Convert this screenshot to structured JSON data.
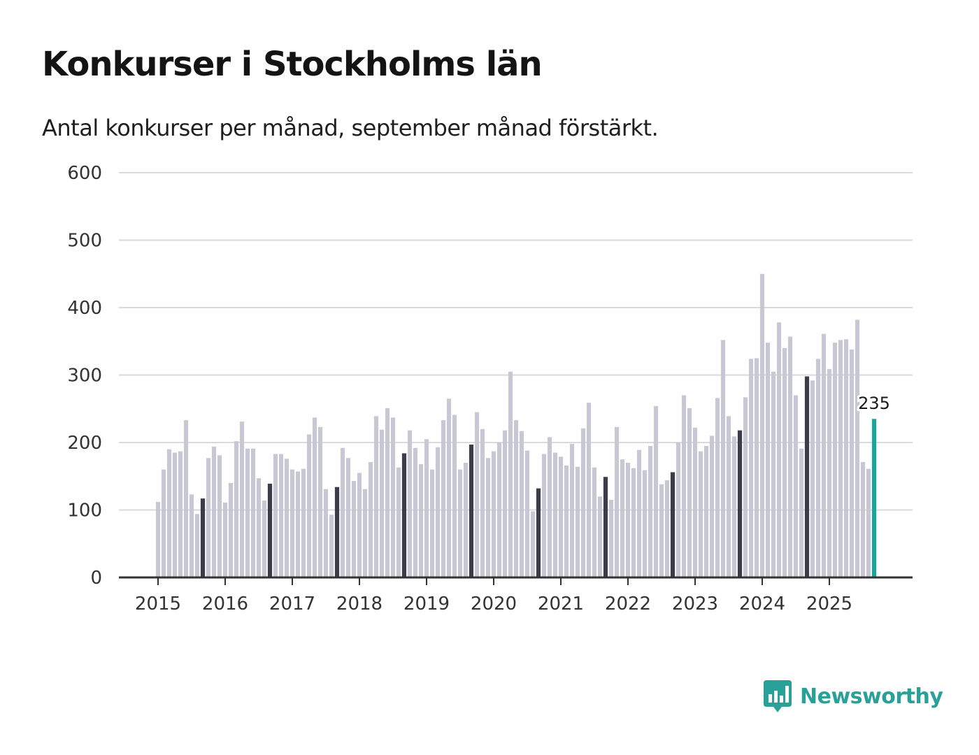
{
  "title": "Konkurser i Stockholms län",
  "subtitle": "Antal konkurser per månad, september månad förstärkt.",
  "brand": {
    "name": "Newsworthy"
  },
  "colors": {
    "bar": "#c8c8d4",
    "highlight": "#3d3c4a",
    "latest": "#16a99a",
    "grid": "#d9d9de",
    "axis": "#333333"
  },
  "chart_data": {
    "type": "bar",
    "title": "Konkurser i Stockholms län",
    "xlabel": "",
    "ylabel": "",
    "ylim": [
      0,
      600
    ],
    "yticks": [
      0,
      100,
      200,
      300,
      400,
      500,
      600
    ],
    "start": {
      "year": 2015,
      "month": 1
    },
    "xtick_labels": [
      "2015",
      "2016",
      "2017",
      "2018",
      "2019",
      "2020",
      "2021",
      "2022",
      "2023",
      "2024",
      "2025"
    ],
    "highlight_month": 9,
    "latest_label": "235",
    "values": [
      112,
      160,
      190,
      185,
      187,
      233,
      123,
      94,
      117,
      177,
      194,
      181,
      111,
      140,
      202,
      231,
      191,
      191,
      147,
      114,
      139,
      183,
      183,
      176,
      160,
      157,
      161,
      212,
      237,
      223,
      131,
      93,
      134,
      192,
      177,
      143,
      155,
      131,
      171,
      239,
      219,
      251,
      237,
      163,
      184,
      218,
      192,
      168,
      205,
      160,
      193,
      233,
      265,
      241,
      160,
      170,
      197,
      245,
      220,
      177,
      187,
      200,
      218,
      305,
      233,
      217,
      188,
      98,
      132,
      183,
      208,
      185,
      179,
      166,
      198,
      164,
      221,
      259,
      163,
      120,
      149,
      115,
      223,
      175,
      170,
      162,
      189,
      159,
      195,
      254,
      138,
      144,
      156,
      200,
      270,
      251,
      222,
      187,
      195,
      210,
      266,
      352,
      239,
      209,
      218,
      267,
      324,
      325,
      450,
      348,
      305,
      378,
      340,
      357,
      270,
      191,
      298,
      292,
      324,
      361,
      309,
      348,
      352,
      353,
      338,
      382,
      171,
      161,
      235
    ]
  }
}
